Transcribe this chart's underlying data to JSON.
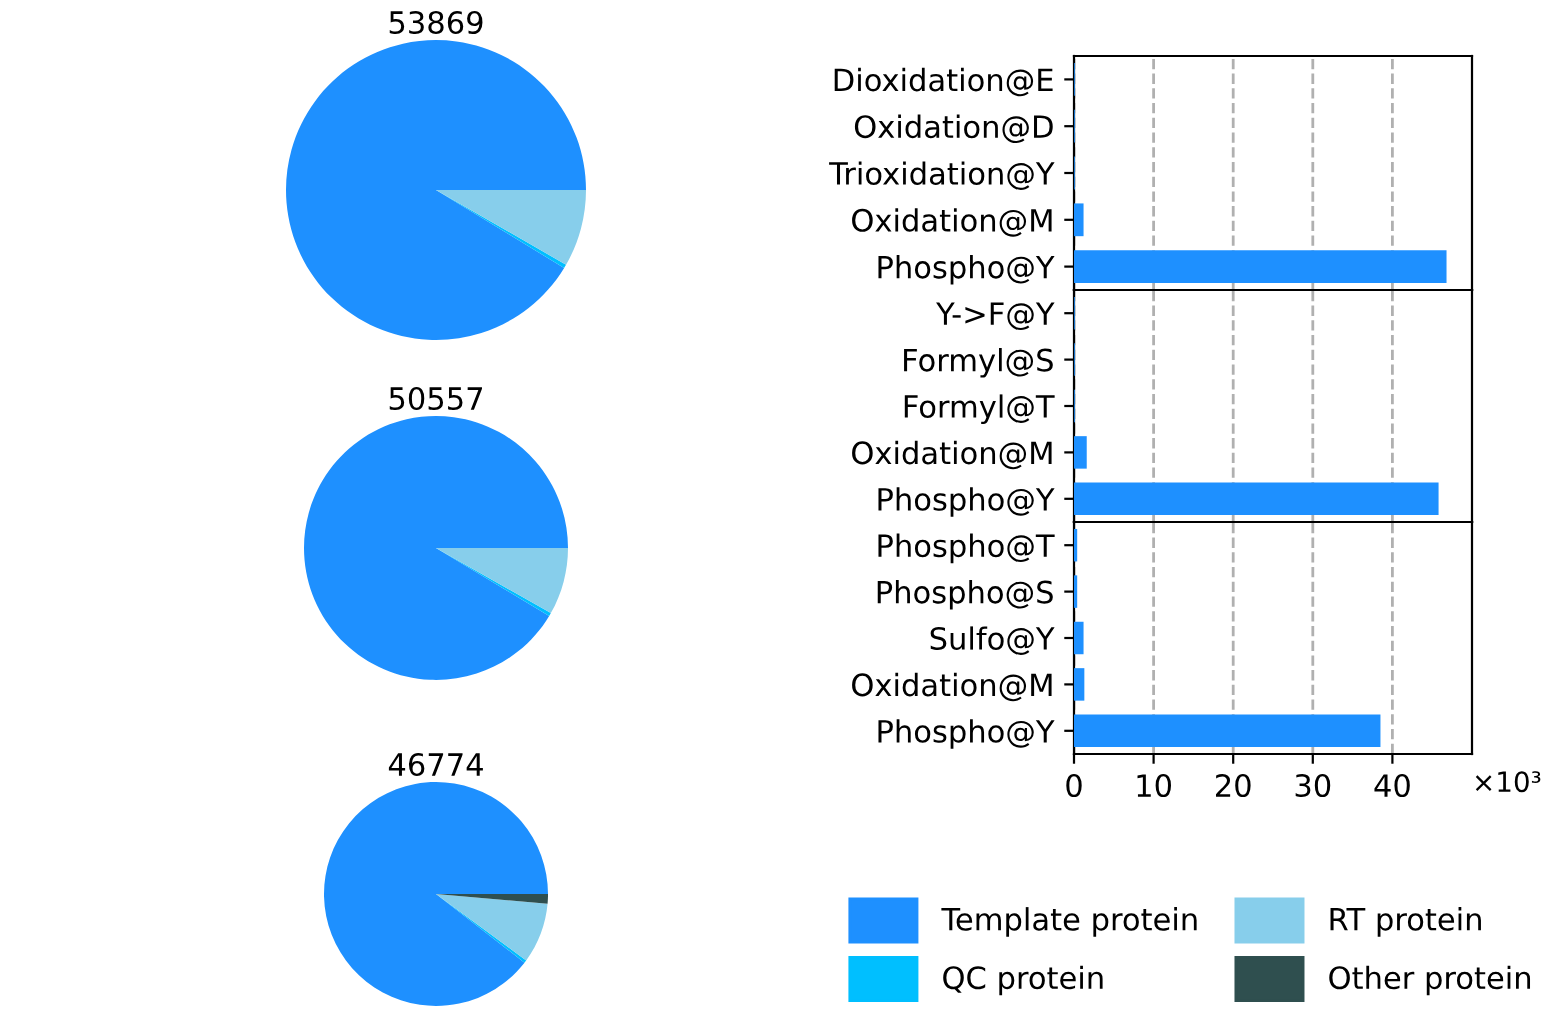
{
  "chart_data": [
    {
      "type": "pie",
      "title": "53869",
      "categories": [
        "Template protein",
        "QC protein",
        "RT protein",
        "Other protein"
      ],
      "values": [
        91.3,
        0.4,
        8.3,
        0
      ],
      "colors": [
        "#1e90ff",
        "#00bfff",
        "#87ceeb",
        "#2f4f4f"
      ],
      "legend": "bottom"
    },
    {
      "type": "pie",
      "title": "50557",
      "categories": [
        null,
        null,
        null,
        null
      ],
      "values": [
        91.4,
        0.4,
        8.2,
        0
      ],
      "colors": [
        "#1e90ff",
        "#00bfff",
        "#87ceeb",
        "#2f4f4f"
      ]
    },
    {
      "type": "pie",
      "title": "46774",
      "categories": [
        null,
        null,
        null,
        null
      ],
      "values": [
        89.5,
        0.4,
        8.7,
        1.4
      ],
      "colors": [
        "#1e90ff",
        "#00bfff",
        "#87ceeb",
        "#2f4f4f"
      ]
    },
    {
      "type": "bar",
      "orientation": "horizontal",
      "categories": [
        "Dioxidation@E",
        "Oxidation@D",
        "Trioxidation@Y",
        "Oxidation@M",
        "Phospho@Y"
      ],
      "values": [
        0.1,
        0.1,
        0.1,
        1.2,
        46.8
      ],
      "color": "#1e90ff",
      "xlim": [
        0,
        50
      ],
      "xticks": [
        0,
        10,
        20,
        30,
        40
      ],
      "grid": "x",
      "tick_labels": "y"
    },
    {
      "type": "bar",
      "orientation": "horizontal",
      "categories": [
        "Y->F@Y",
        "Formyl@S",
        "Formyl@T",
        "Oxidation@M",
        "Phospho@Y"
      ],
      "values": [
        0.1,
        0.1,
        0.1,
        1.6,
        45.8
      ],
      "color": "#1e90ff",
      "xlim": [
        0,
        50
      ],
      "xticks": [
        0,
        10,
        20,
        30,
        40
      ],
      "grid": "x",
      "tick_labels": "y"
    },
    {
      "type": "bar",
      "orientation": "horizontal",
      "categories": [
        "Phospho@T",
        "Phospho@S",
        "Sulfo@Y",
        "Oxidation@M",
        "Phospho@Y"
      ],
      "values": [
        0.4,
        0.4,
        1.2,
        1.3,
        38.5
      ],
      "color": "#1e90ff",
      "xlim": [
        0,
        50
      ],
      "xticks": [
        0,
        10,
        20,
        30,
        40
      ],
      "grid": "x",
      "annotations": [
        "×10³"
      ]
    }
  ]
}
